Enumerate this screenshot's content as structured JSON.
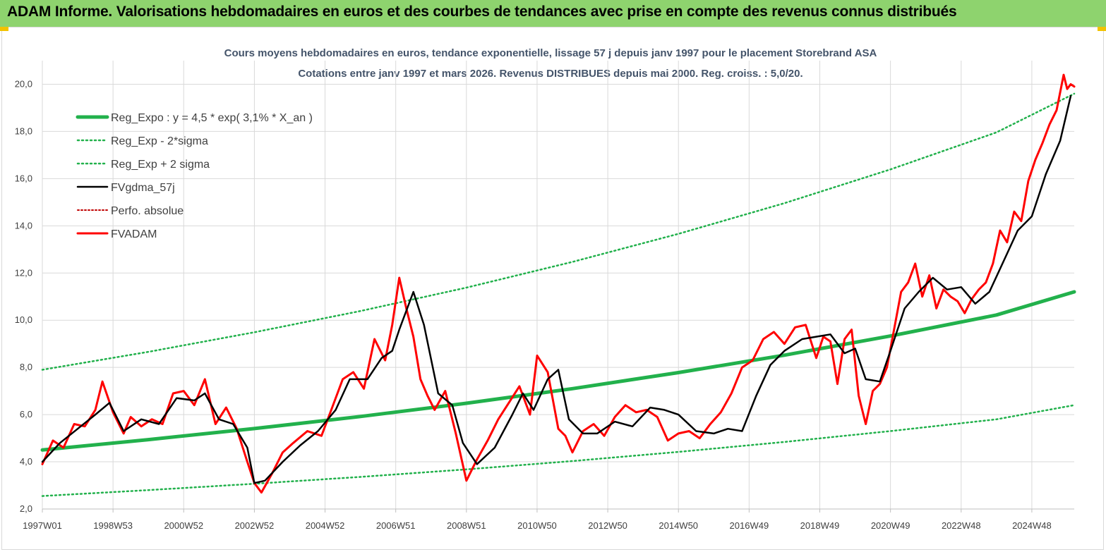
{
  "header": {
    "banner_text": "ADAM Informe. Valorisations hebdomadaires en euros et des courbes de tendances avec prise en compte des revenus connus distribués"
  },
  "colors": {
    "banner_bg": "#8ed36e",
    "reg_expo": "#22b14c",
    "fv_gdma": "#000000",
    "perfo": "#c00000",
    "fvadam": "#ff0000",
    "grid": "#d9d9d9"
  },
  "chart_data": {
    "type": "line",
    "title": "Cours moyens hebdomadaires en euros, tendance exponentielle, lissage 57 j depuis janv 1997 pour le placement Storebrand ASA",
    "subtitle": "Cotations entre janv 1997 et mars 2026. Revenus DISTRIBUES depuis mai 2000. Reg. croiss. : 5,0/20.",
    "ylim": [
      2.0,
      21.0
    ],
    "xlim": [
      1997.0,
      2026.2
    ],
    "grid": true,
    "legend_position": "top-left",
    "y_ticks": [
      {
        "label": "2,0",
        "value": 2.0
      },
      {
        "label": "4,0",
        "value": 4.0
      },
      {
        "label": "6,0",
        "value": 6.0
      },
      {
        "label": "8,0",
        "value": 8.0
      },
      {
        "label": "10,0",
        "value": 10.0
      },
      {
        "label": "12,0",
        "value": 12.0
      },
      {
        "label": "14,0",
        "value": 14.0
      },
      {
        "label": "16,0",
        "value": 16.0
      },
      {
        "label": "18,0",
        "value": 18.0
      },
      {
        "label": "20,0",
        "value": 20.0
      }
    ],
    "x_ticks": [
      {
        "label": "1997W01",
        "value": 1997.0
      },
      {
        "label": "1998W53",
        "value": 1999.0
      },
      {
        "label": "2000W52",
        "value": 2001.0
      },
      {
        "label": "2002W52",
        "value": 2003.0
      },
      {
        "label": "2004W52",
        "value": 2005.0
      },
      {
        "label": "2006W51",
        "value": 2007.0
      },
      {
        "label": "2008W51",
        "value": 2009.0
      },
      {
        "label": "2010W50",
        "value": 2011.0
      },
      {
        "label": "2012W50",
        "value": 2013.0
      },
      {
        "label": "2014W50",
        "value": 2015.0
      },
      {
        "label": "2016W49",
        "value": 2017.0
      },
      {
        "label": "2018W49",
        "value": 2019.0
      },
      {
        "label": "2020W49",
        "value": 2021.0
      },
      {
        "label": "2022W48",
        "value": 2023.0
      },
      {
        "label": "2024W48",
        "value": 2025.0
      }
    ],
    "legend": [
      {
        "label": "Reg_Expo : y = 4,5 * exp( 3,1% *  X_an )",
        "color": "#22b14c",
        "style": "solid-thick"
      },
      {
        "label": "Reg_Exp - 2*sigma",
        "color": "#22b14c",
        "style": "dotted"
      },
      {
        "label": "Reg_Exp + 2 sigma",
        "color": "#22b14c",
        "style": "dotted"
      },
      {
        "label": "FVgdma_57j",
        "color": "#000000",
        "style": "solid"
      },
      {
        "label": "Perfo. absolue",
        "color": "#c00000",
        "style": "dotted"
      },
      {
        "label": "FVADAM",
        "color": "#ff0000",
        "style": "solid"
      }
    ],
    "series": [
      {
        "name": "Reg_Expo : y = 4,5 * exp( 3,1% *  X_an )",
        "x": [
          1997.0,
          2000.0,
          2003.0,
          2006.0,
          2009.0,
          2012.0,
          2015.0,
          2018.0,
          2021.0,
          2024.0,
          2026.2
        ],
        "y": [
          4.5,
          4.94,
          5.41,
          5.92,
          6.48,
          7.1,
          7.78,
          8.52,
          9.33,
          10.22,
          11.2
        ]
      },
      {
        "name": "Reg_Exp - 2*sigma",
        "x": [
          1997.0,
          2000.0,
          2003.0,
          2006.0,
          2009.0,
          2012.0,
          2015.0,
          2018.0,
          2021.0,
          2024.0,
          2026.2
        ],
        "y": [
          2.55,
          2.8,
          3.07,
          3.36,
          3.68,
          4.03,
          4.42,
          4.84,
          5.3,
          5.8,
          6.4
        ]
      },
      {
        "name": "Reg_Exp + 2 sigma",
        "x": [
          1997.0,
          2000.0,
          2003.0,
          2006.0,
          2009.0,
          2012.0,
          2015.0,
          2018.0,
          2021.0,
          2024.0,
          2026.2
        ],
        "y": [
          7.9,
          8.66,
          9.49,
          10.39,
          11.38,
          12.47,
          13.66,
          14.96,
          16.39,
          17.96,
          19.6
        ]
      },
      {
        "name": "FVgdma_57j",
        "x": [
          1997.0,
          1997.5,
          1998.0,
          1998.5,
          1998.9,
          1999.3,
          1999.8,
          2000.3,
          2000.8,
          2001.3,
          2001.6,
          2002.0,
          2002.4,
          2002.8,
          2003.0,
          2003.3,
          2003.8,
          2004.3,
          2004.8,
          2005.3,
          2005.7,
          2006.2,
          2006.6,
          2006.9,
          2007.1,
          2007.5,
          2007.8,
          2008.2,
          2008.6,
          2008.9,
          2009.3,
          2009.8,
          2010.3,
          2010.6,
          2010.9,
          2011.3,
          2011.6,
          2011.9,
          2012.3,
          2012.7,
          2013.2,
          2013.7,
          2014.2,
          2014.6,
          2015.0,
          2015.5,
          2016.0,
          2016.4,
          2016.8,
          2017.2,
          2017.6,
          2018.0,
          2018.5,
          2018.9,
          2019.3,
          2019.7,
          2020.0,
          2020.3,
          2020.7,
          2021.0,
          2021.4,
          2021.8,
          2022.2,
          2022.6,
          2023.0,
          2023.4,
          2023.8,
          2024.2,
          2024.6,
          2025.0,
          2025.4,
          2025.8,
          2026.1
        ],
        "y": [
          4.0,
          4.8,
          5.4,
          6.0,
          6.5,
          5.3,
          5.8,
          5.6,
          6.7,
          6.6,
          6.9,
          5.8,
          5.6,
          4.6,
          3.1,
          3.2,
          4.0,
          4.7,
          5.3,
          6.2,
          7.5,
          7.5,
          8.4,
          8.7,
          9.6,
          11.2,
          9.8,
          6.9,
          6.4,
          4.8,
          3.9,
          4.6,
          6.0,
          6.9,
          6.2,
          7.5,
          7.9,
          5.8,
          5.2,
          5.2,
          5.7,
          5.5,
          6.3,
          6.2,
          6.0,
          5.3,
          5.2,
          5.4,
          5.3,
          6.8,
          8.1,
          8.7,
          9.2,
          9.3,
          9.4,
          8.6,
          8.8,
          7.5,
          7.4,
          8.7,
          10.5,
          11.2,
          11.8,
          11.3,
          11.4,
          10.7,
          11.2,
          12.5,
          13.8,
          14.4,
          16.2,
          17.6,
          19.5
        ]
      },
      {
        "name": "FVADAM",
        "x": [
          1997.0,
          1997.3,
          1997.6,
          1997.9,
          1998.2,
          1998.5,
          1998.7,
          1999.0,
          1999.3,
          1999.5,
          1999.8,
          2000.1,
          2000.4,
          2000.7,
          2001.0,
          2001.3,
          2001.6,
          2001.9,
          2002.2,
          2002.5,
          2002.8,
          2003.0,
          2003.2,
          2003.5,
          2003.8,
          2004.1,
          2004.5,
          2004.9,
          2005.2,
          2005.5,
          2005.8,
          2006.1,
          2006.4,
          2006.7,
          2006.9,
          2007.1,
          2007.3,
          2007.5,
          2007.7,
          2007.9,
          2008.1,
          2008.4,
          2008.7,
          2009.0,
          2009.3,
          2009.6,
          2009.9,
          2010.2,
          2010.5,
          2010.8,
          2011.0,
          2011.3,
          2011.6,
          2011.8,
          2012.0,
          2012.3,
          2012.6,
          2012.9,
          2013.2,
          2013.5,
          2013.8,
          2014.1,
          2014.4,
          2014.7,
          2015.0,
          2015.3,
          2015.6,
          2015.9,
          2016.2,
          2016.5,
          2016.8,
          2017.1,
          2017.4,
          2017.7,
          2018.0,
          2018.3,
          2018.6,
          2018.9,
          2019.1,
          2019.3,
          2019.5,
          2019.7,
          2019.9,
          2020.1,
          2020.3,
          2020.5,
          2020.7,
          2020.9,
          2021.1,
          2021.3,
          2021.5,
          2021.7,
          2021.9,
          2022.1,
          2022.3,
          2022.5,
          2022.7,
          2022.9,
          2023.1,
          2023.3,
          2023.5,
          2023.7,
          2023.9,
          2024.1,
          2024.3,
          2024.5,
          2024.7,
          2024.9,
          2025.1,
          2025.3,
          2025.5,
          2025.7,
          2025.9,
          2026.0,
          2026.1,
          2026.2
        ],
        "y": [
          3.9,
          4.9,
          4.6,
          5.6,
          5.5,
          6.2,
          7.4,
          6.1,
          5.2,
          5.9,
          5.5,
          5.8,
          5.6,
          6.9,
          7.0,
          6.4,
          7.5,
          5.6,
          6.3,
          5.4,
          4.0,
          3.1,
          2.7,
          3.5,
          4.4,
          4.8,
          5.3,
          5.1,
          6.3,
          7.5,
          7.8,
          7.1,
          9.2,
          8.3,
          9.8,
          11.8,
          10.5,
          9.3,
          7.5,
          6.8,
          6.2,
          7.0,
          5.2,
          3.2,
          4.1,
          4.9,
          5.8,
          6.5,
          7.2,
          6.0,
          8.5,
          7.8,
          5.4,
          5.1,
          4.4,
          5.3,
          5.6,
          5.1,
          5.9,
          6.4,
          6.1,
          6.2,
          5.9,
          4.9,
          5.2,
          5.3,
          5.0,
          5.6,
          6.1,
          6.9,
          8.0,
          8.3,
          9.2,
          9.5,
          9.0,
          9.7,
          9.8,
          8.4,
          9.3,
          9.1,
          7.3,
          9.2,
          9.6,
          6.8,
          5.6,
          7.0,
          7.3,
          8.0,
          9.6,
          11.2,
          11.6,
          12.4,
          11.0,
          11.9,
          10.5,
          11.3,
          11.0,
          10.8,
          10.3,
          10.9,
          11.3,
          11.6,
          12.4,
          13.8,
          13.3,
          14.6,
          14.2,
          15.9,
          16.8,
          17.5,
          18.3,
          18.9,
          20.4,
          19.8,
          20.0,
          19.9
        ]
      }
    ]
  }
}
